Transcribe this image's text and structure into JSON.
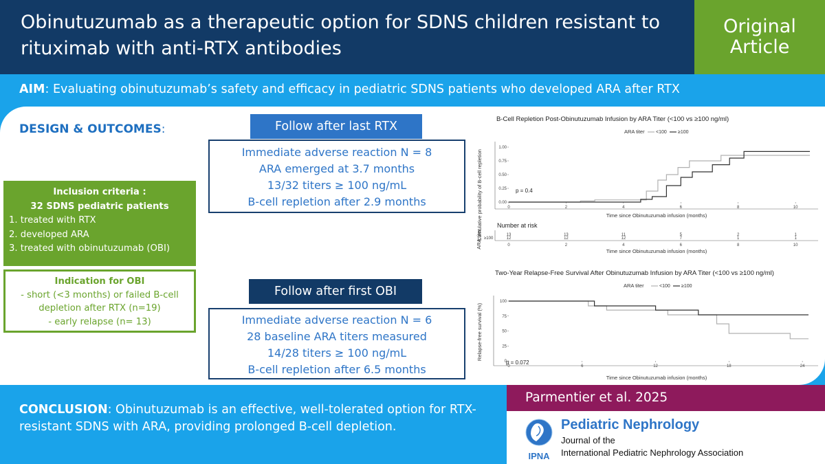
{
  "header": {
    "title": "Obinutuzumab as a therapeutic option for SDNS children resistant to rituximab with anti-RTX antibodies",
    "badge_line1": "Original",
    "badge_line2": "Article"
  },
  "aim": {
    "label": "AIM",
    "text": ": Evaluating obinutuzumab’s safety and efficacy in pediatric SDNS patients who developed ARA after RTX"
  },
  "design": {
    "label": "DESIGN & OUTCOMES",
    "suffix": ":"
  },
  "inclusion": {
    "heading1": "Inclusion criteria :",
    "heading2": "32 SDNS pediatric patients",
    "items": [
      "1. treated with RTX",
      "2. developed ARA",
      "3. treated with obinutuzumab (OBI)"
    ]
  },
  "indication": {
    "heading": "Indication for OBI",
    "lines": [
      "- short (<3 months) or failed B-cell",
      "depletion after RTX (n=19)",
      "- early relapse (n= 13)"
    ]
  },
  "follow_rtx": {
    "label": "Follow after last RTX",
    "lines": [
      "Immediate adverse reaction N = 8",
      "ARA emerged at 3.7 months",
      "13/32 titers ≥ 100 ng/mL",
      "B-cell repletion after 2.9 months"
    ]
  },
  "follow_obi": {
    "label": "Follow after first OBI",
    "lines": [
      "Immediate adverse reaction N = 6",
      "28 baseline ARA titers measured",
      "14/28 titers ≥ 100 ng/mL",
      "B-cell repletion after 6.5 months"
    ]
  },
  "conclusion": {
    "label": "CONCLUSION",
    "text": ": Obinutuzumab is an effective, well-tolerated option for RTX-resistant SDNS with ARA, providing prolonged B-cell depletion."
  },
  "citation": "Parmentier et al. 2025",
  "journal": {
    "name": "Pediatric Nephrology",
    "sub1": "Journal of the",
    "sub2": "International Pediatric Nephrology Association",
    "logo_text": "IPNA"
  },
  "colors": {
    "navy": "#123a66",
    "green": "#6aa42d",
    "sky": "#1aa3ea",
    "blue": "#2e75c7",
    "plum": "#8e1a5c",
    "series_low": "#b0b0b0",
    "series_high": "#303030"
  },
  "chart_data": [
    {
      "type": "line",
      "title": "B-Cell Repletion Post-Obinutuzumab Infusion by ARA Titer (<100 vs ≥100 ng/ml)",
      "legend_title": "ARA titer",
      "legend_position": "top",
      "xlabel": "Time since Obinutuzumab infusion (months)",
      "ylabel": "Cumulative probability of B-cell repletion",
      "xlim": [
        0,
        10.5
      ],
      "ylim": [
        0,
        1
      ],
      "xticks": [
        "0",
        "2",
        "4",
        "6",
        "8",
        "10"
      ],
      "yticks": [
        "0.00",
        "0.25",
        "0.50",
        "0.75",
        "1.00"
      ],
      "annotation": "p = 0.4",
      "series": [
        {
          "name": "<100",
          "x": [
            0,
            2.5,
            2.5,
            3.0,
            3.0,
            4.8,
            4.8,
            5.2,
            5.2,
            5.5,
            5.5,
            5.9,
            5.9,
            6.3,
            6.3,
            7.4,
            7.4,
            10.5
          ],
          "y": [
            0,
            0,
            0.02,
            0.02,
            0.04,
            0.04,
            0.2,
            0.2,
            0.4,
            0.4,
            0.5,
            0.5,
            0.63,
            0.63,
            0.75,
            0.75,
            0.85,
            0.85
          ]
        },
        {
          "name": "≥100",
          "x": [
            0,
            4.6,
            4.6,
            5.0,
            5.0,
            5.5,
            5.5,
            6.0,
            6.0,
            6.4,
            6.4,
            7.1,
            7.1,
            7.7,
            7.7,
            8.2,
            8.2,
            10.5
          ],
          "y": [
            0,
            0,
            0.05,
            0.05,
            0.1,
            0.1,
            0.3,
            0.3,
            0.45,
            0.45,
            0.55,
            0.55,
            0.68,
            0.68,
            0.8,
            0.8,
            0.92,
            0.92
          ]
        }
      ],
      "risk_table": {
        "title": "Number at risk",
        "ylabel": "ARA titer",
        "row_label": "≥100",
        "times": [
          "0",
          "2",
          "4",
          "6",
          "8",
          "10"
        ],
        "row_top": [
          "13",
          "13",
          "11",
          "5",
          "2",
          "1"
        ],
        "row_bottom": [
          "12",
          "12",
          "12",
          "7",
          "1",
          "1"
        ]
      }
    },
    {
      "type": "line",
      "title": "Two-Year Relapse-Free Survival After Obinutuzumab Infusion by ARA Titer (<100 vs ≥100 ng/ml)",
      "legend_title": "ARA titer",
      "legend_position": "top",
      "xlabel": "Time since Obinutuzumab infusion (months)",
      "ylabel": "Relapse-free survival (%)",
      "xlim": [
        0,
        24.5
      ],
      "ylim": [
        0,
        100
      ],
      "xticks": [
        "0",
        "6",
        "12",
        "18",
        "24"
      ],
      "yticks": [
        "0",
        "25",
        "50",
        "75",
        "100"
      ],
      "annotation": "p = 0.072",
      "series": [
        {
          "name": "<100",
          "x": [
            0,
            6.5,
            6.5,
            8.0,
            8.0,
            13.0,
            13.0,
            17.0,
            17.0,
            18.0,
            18.0,
            23.0,
            23.0,
            24.5
          ],
          "y": [
            100,
            100,
            92,
            92,
            85,
            85,
            77,
            77,
            62,
            62,
            46,
            46,
            37,
            37
          ]
        },
        {
          "name": "≥100",
          "x": [
            0,
            7.0,
            7.0,
            12.0,
            12.0,
            15.5,
            15.5,
            24.5
          ],
          "y": [
            100,
            100,
            92,
            92,
            85,
            85,
            77,
            77
          ]
        }
      ]
    }
  ]
}
